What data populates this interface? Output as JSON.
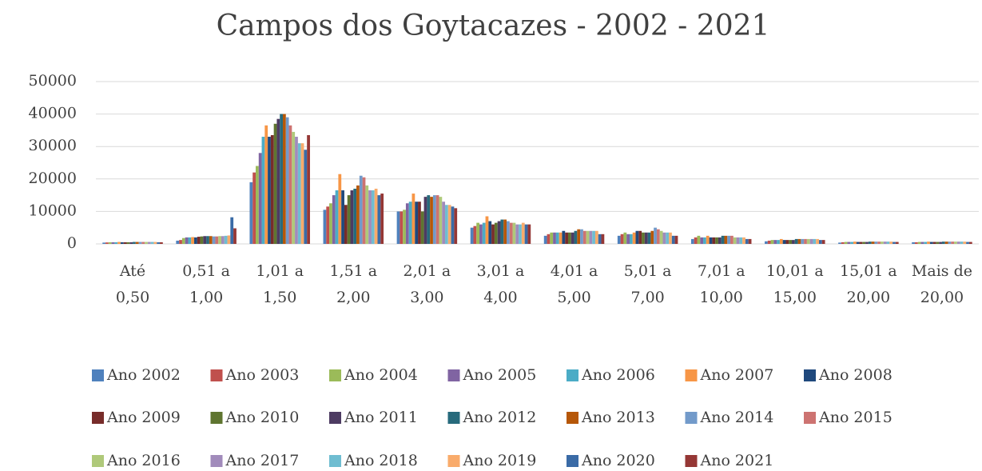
{
  "chart_data": {
    "type": "bar",
    "title": "Campos dos Goytacazes - 2002 - 2021",
    "categories": [
      "Até 0,50",
      "0,51 a 1,00",
      "1,01 a 1,50",
      "1,51 a 2,00",
      "2,01 a 3,00",
      "3,01 a 4,00",
      "4,01 a 5,00",
      "5,01 a 7,00",
      "7,01 a 10,00",
      "10,01 a 15,00",
      "15,01 a 20,00",
      "Mais de 20,00"
    ],
    "ylim": [
      0,
      50000
    ],
    "yticks": [
      0,
      10000,
      20000,
      30000,
      40000,
      50000
    ],
    "grid": true,
    "legend": "bottom",
    "series": [
      {
        "name": "Ano 2002",
        "color": "#4F81BD",
        "values": [
          400,
          1000,
          19000,
          10500,
          10000,
          5000,
          2500,
          2500,
          1500,
          800,
          400,
          500
        ]
      },
      {
        "name": "Ano 2003",
        "color": "#C0504D",
        "values": [
          450,
          1200,
          22000,
          11500,
          10000,
          5500,
          3000,
          3000,
          2000,
          1000,
          500,
          500
        ]
      },
      {
        "name": "Ano 2004",
        "color": "#9BBB59",
        "values": [
          500,
          1800,
          24000,
          12500,
          10500,
          6500,
          3500,
          3500,
          2500,
          1200,
          600,
          600
        ]
      },
      {
        "name": "Ano 2005",
        "color": "#8064A2",
        "values": [
          500,
          2000,
          28000,
          15000,
          12500,
          6000,
          3500,
          3000,
          2000,
          1200,
          600,
          600
        ]
      },
      {
        "name": "Ano 2006",
        "color": "#4BACC6",
        "values": [
          500,
          2000,
          33000,
          16500,
          13000,
          6500,
          3500,
          3000,
          2000,
          1200,
          600,
          600
        ]
      },
      {
        "name": "Ano 2007",
        "color": "#F79646",
        "values": [
          600,
          2100,
          36500,
          21500,
          15500,
          8500,
          3500,
          3500,
          2500,
          1500,
          700,
          700
        ]
      },
      {
        "name": "Ano 2008",
        "color": "#1F497D",
        "values": [
          500,
          2000,
          33000,
          16500,
          13000,
          7000,
          4000,
          4000,
          2000,
          1200,
          600,
          600
        ]
      },
      {
        "name": "Ano 2009",
        "color": "#772C2A",
        "values": [
          500,
          2200,
          33500,
          12000,
          13000,
          6000,
          3500,
          4000,
          2000,
          1200,
          600,
          600
        ]
      },
      {
        "name": "Ano 2010",
        "color": "#5F7530",
        "values": [
          500,
          2300,
          37000,
          15000,
          10000,
          6500,
          3500,
          3500,
          2000,
          1200,
          600,
          600
        ]
      },
      {
        "name": "Ano 2011",
        "color": "#4D3B62",
        "values": [
          500,
          2400,
          38500,
          16500,
          14500,
          7000,
          3500,
          3500,
          2000,
          1200,
          600,
          600
        ]
      },
      {
        "name": "Ano 2012",
        "color": "#276A7C",
        "values": [
          600,
          2400,
          40000,
          17000,
          15000,
          7500,
          4000,
          3500,
          2500,
          1500,
          700,
          700
        ]
      },
      {
        "name": "Ano 2013",
        "color": "#B65708",
        "values": [
          600,
          2400,
          40000,
          18000,
          14500,
          7500,
          4500,
          4000,
          2500,
          1500,
          700,
          700
        ]
      },
      {
        "name": "Ano 2014",
        "color": "#729ACA",
        "values": [
          600,
          2300,
          39000,
          21000,
          15000,
          7000,
          4500,
          5000,
          2500,
          1500,
          700,
          700
        ]
      },
      {
        "name": "Ano 2015",
        "color": "#CD7371",
        "values": [
          600,
          2300,
          36500,
          20500,
          15000,
          6500,
          4000,
          4500,
          2500,
          1500,
          700,
          700
        ]
      },
      {
        "name": "Ano 2016",
        "color": "#AFC97A",
        "values": [
          600,
          2400,
          34500,
          18000,
          14500,
          6500,
          4000,
          4000,
          2000,
          1500,
          700,
          700
        ]
      },
      {
        "name": "Ano 2017",
        "color": "#A18BBB",
        "values": [
          600,
          2400,
          33000,
          16500,
          13000,
          6000,
          4000,
          3500,
          2000,
          1500,
          700,
          700
        ]
      },
      {
        "name": "Ano 2018",
        "color": "#6FBDD1",
        "values": [
          600,
          2500,
          31000,
          16500,
          12000,
          6000,
          4000,
          3500,
          2000,
          1500,
          700,
          700
        ]
      },
      {
        "name": "Ano 2019",
        "color": "#F9AB6B",
        "values": [
          600,
          2600,
          31000,
          17000,
          12000,
          6500,
          4000,
          3500,
          2000,
          1500,
          700,
          700
        ]
      },
      {
        "name": "Ano 2020",
        "color": "#3A6BA6",
        "values": [
          500,
          8200,
          29000,
          15000,
          11500,
          6000,
          3000,
          2500,
          1500,
          1200,
          600,
          600
        ]
      },
      {
        "name": "Ano 2021",
        "color": "#953735",
        "values": [
          500,
          4800,
          33500,
          15500,
          11000,
          6000,
          3000,
          2500,
          1500,
          1200,
          600,
          600
        ]
      }
    ]
  }
}
